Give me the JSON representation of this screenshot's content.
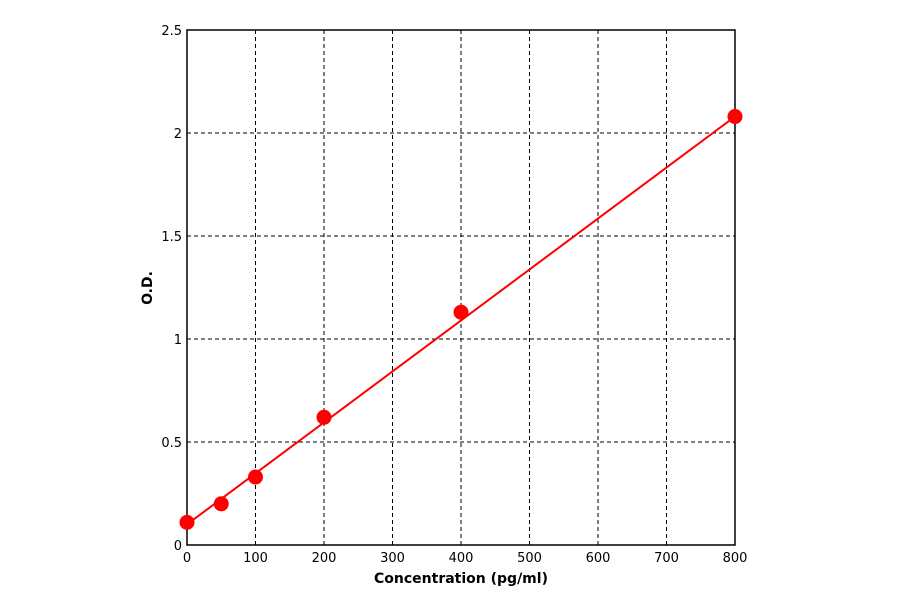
{
  "chart_data": {
    "type": "scatter",
    "title": "",
    "xlabel": "Concentration (pg/ml)",
    "ylabel": "O.D.",
    "xlim": [
      0,
      800
    ],
    "ylim": [
      0,
      2.5
    ],
    "x_ticks": [
      "0",
      "100",
      "200",
      "300",
      "400",
      "500",
      "600",
      "700",
      "800"
    ],
    "y_ticks": [
      "0",
      "0.5",
      "1",
      "1.5",
      "2",
      "2.5"
    ],
    "grid": true,
    "legend": "none",
    "series": [
      {
        "x": [
          0,
          50,
          100,
          200,
          400,
          800
        ],
        "y": [
          0.11,
          0.2,
          0.33,
          0.62,
          1.13,
          2.08
        ],
        "color": "#ff0000",
        "marker": "circle"
      }
    ],
    "fit_line": {
      "x": [
        0,
        800
      ],
      "y": [
        0.1,
        2.08
      ],
      "color": "#ff0000"
    }
  }
}
